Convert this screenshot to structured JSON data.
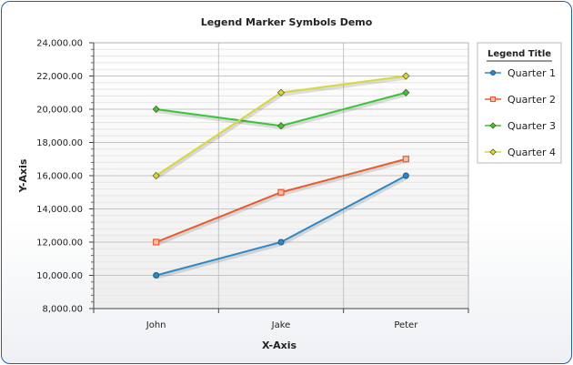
{
  "chart_data": {
    "type": "line",
    "title": "Legend Marker Symbols Demo",
    "xlabel": "X-Axis",
    "ylabel": "Y-Axis",
    "categories": [
      "John",
      "Jake",
      "Peter"
    ],
    "ylim": [
      8000,
      24000
    ],
    "y_ticks": [
      "8,000.00",
      "10,000.00",
      "12,000.00",
      "14,000.00",
      "16,000.00",
      "18,000.00",
      "20,000.00",
      "22,000.00",
      "24,000.00"
    ],
    "grid": true,
    "legend": {
      "title": "Legend Title",
      "placement": "right"
    },
    "series": [
      {
        "name": "Quarter 1",
        "values": [
          10000,
          12000,
          16000
        ],
        "color": "#2e88c8",
        "marker": "circle"
      },
      {
        "name": "Quarter 2",
        "values": [
          12000,
          15000,
          17000
        ],
        "color": "#ea5a2c",
        "marker": "square"
      },
      {
        "name": "Quarter 3",
        "values": [
          20000,
          19000,
          21000
        ],
        "color": "#3ac43a",
        "marker": "diamond"
      },
      {
        "name": "Quarter 4",
        "values": [
          16000,
          21000,
          22000
        ],
        "color": "#d8d83a",
        "marker": "diamond"
      }
    ]
  }
}
